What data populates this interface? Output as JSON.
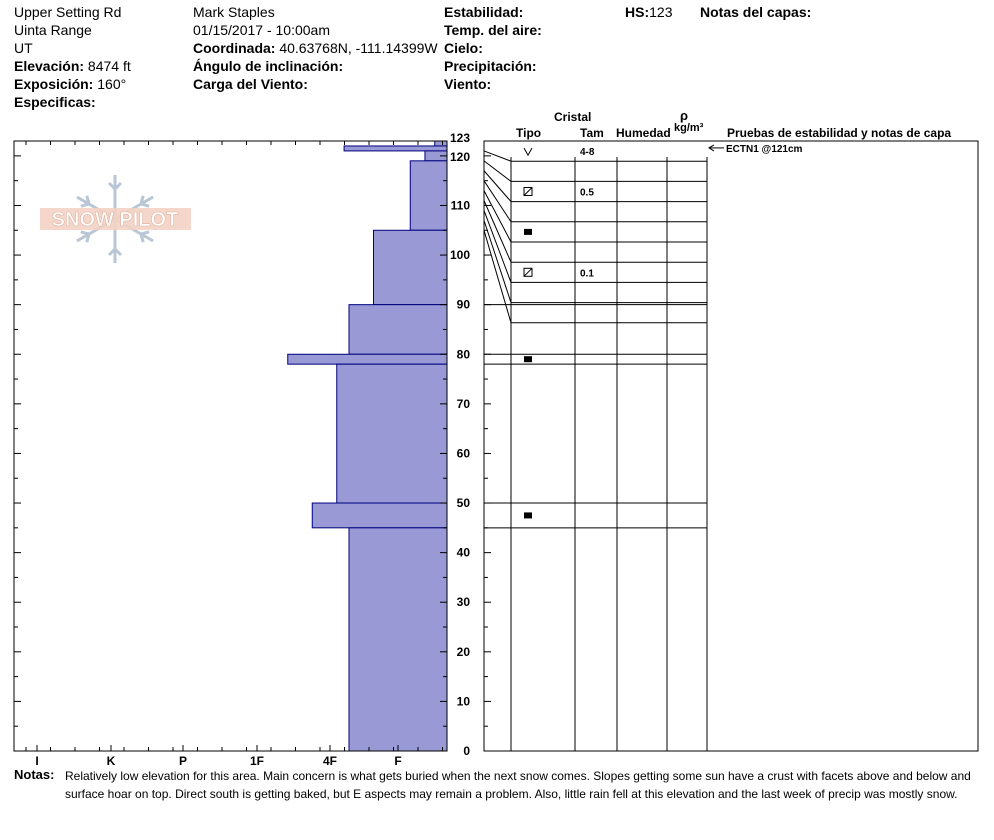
{
  "header": {
    "location": "Upper Setting Rd",
    "range": "Uinta Range",
    "state": "UT",
    "elevation_label": "Elevación:",
    "elevation_value": "8474 ft",
    "aspect_label": "Exposición:",
    "aspect_value": "160°",
    "specifics_label": "Especificas:",
    "observer": "Mark Staples",
    "datetime": "01/15/2017 - 10:00am",
    "coord_label": "Coordinada:",
    "coord_value": "40.63768N, -111.14399W",
    "slope_label": "Ángulo de inclinación:",
    "wind_loading_label": "Carga del Viento:",
    "stability_label": "Estabilidad:",
    "air_temp_label": "Temp. del aire:",
    "sky_label": "Cielo:",
    "precip_label": "Precipitación:",
    "wind_label": "Viento:",
    "hs_label": "HS:",
    "hs_value": "123",
    "layer_notes_label": "Notas del capas:"
  },
  "logo_text": "SNOW PILOT",
  "columns": {
    "crystal": "Cristal",
    "type": "Tipo",
    "size": "Tam",
    "humidity": "Humedad",
    "rho": "ρ",
    "density_unit": "kg/m³",
    "tests": "Pruebas de estabilidad y notas de capa"
  },
  "notes_label": "Notas:",
  "notes_line1": "Relatively low elevation for this area. Main concern is what gets buried when the next snow comes. Slopes getting some sun have a crust with facets above and below and",
  "notes_line2": "surface hoar on top. Direct south is getting baked, but E aspects may remain a problem. Also, little rain fell at this elevation and the last week of precip was mostly snow.",
  "chart_data": {
    "type": "bar",
    "orientation": "horizontal-step",
    "title": "",
    "xlabel": "",
    "ylabel": "",
    "ylim": [
      0,
      123
    ],
    "y_ticks": [
      0,
      10,
      20,
      30,
      40,
      50,
      60,
      70,
      80,
      90,
      100,
      110,
      120,
      123
    ],
    "x_categories": [
      "I",
      "K",
      "P",
      "1F",
      "4F",
      "F"
    ],
    "hardness_layers": [
      {
        "top": 123,
        "bottom": 122,
        "hardness": 0.5
      },
      {
        "top": 122,
        "bottom": 121,
        "hardness": 4.2
      },
      {
        "top": 121,
        "bottom": 119,
        "hardness": 0.9
      },
      {
        "top": 119,
        "bottom": 105,
        "hardness": 1.5
      },
      {
        "top": 105,
        "bottom": 90,
        "hardness": 3.0
      },
      {
        "top": 90,
        "bottom": 80,
        "hardness": 4.0
      },
      {
        "top": 80,
        "bottom": 78,
        "hardness": 6.5
      },
      {
        "top": 78,
        "bottom": 50,
        "hardness": 4.5
      },
      {
        "top": 50,
        "bottom": 45,
        "hardness": 5.5
      },
      {
        "top": 45,
        "bottom": 0,
        "hardness": 4.0
      }
    ],
    "layer_boundaries": [
      123,
      121,
      119,
      117,
      115,
      113,
      111,
      109,
      107,
      105,
      90,
      80,
      78,
      50,
      45,
      0
    ],
    "crystal_rows": [
      {
        "top": 123,
        "bottom": 121,
        "type": "surface-hoar",
        "size": "4-8"
      },
      {
        "top": 119,
        "bottom": 117,
        "type": "faceted-rounded",
        "size": "0.5"
      },
      {
        "top": 115,
        "bottom": 113,
        "type": "melt-freeze-crust",
        "size": ""
      },
      {
        "top": 111,
        "bottom": 109,
        "type": "faceted-rounded",
        "size": "0.1"
      },
      {
        "top": 80,
        "bottom": 78,
        "type": "melt-freeze-crust",
        "size": ""
      },
      {
        "top": 50,
        "bottom": 45,
        "type": "melt-freeze-crust",
        "size": ""
      }
    ],
    "tests": [
      {
        "depth": 121,
        "label": "ECTN1 @121cm"
      }
    ],
    "colors": {
      "fill": "#9999d6",
      "edge": "#00007f",
      "axis": "#000000"
    }
  }
}
